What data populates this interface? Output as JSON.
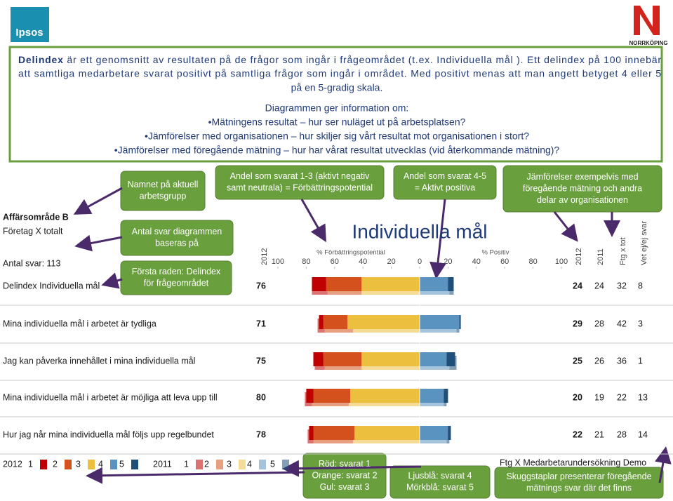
{
  "logo": "Ipsos",
  "brand": "NORRKÖPING",
  "intro": {
    "lead": "Delindex",
    "lines": [
      " är ett genomsnitt av resultaten på de frågor som ingår i frågeområdet (t.ex.  Individuella mål ). Ett delindex på 100 innebär",
      "att samtliga medarbetare svarat positivt på samtliga frågor som ingår i området. Med positivt menas att man angett betyget 4 eller 5",
      "på en 5-gradig skala."
    ],
    "heading": "Diagrammen ger information om:",
    "bullets": [
      "•Mätningens resultat – hur ser nuläget ut  på arbetsplatsen?",
      "•Jämförelser med organisationen – hur skiljer sig vårt resultat mot organisationen i stort?",
      "•Jämförelser med föregående mätning – hur har vårat resultat utvecklas (vid återkommande mätning)?"
    ]
  },
  "callouts": [
    {
      "lines": [
        "Namnet på aktuell",
        "arbetsgrupp"
      ]
    },
    {
      "lines": [
        "Antal svar diagrammen",
        "baseras på"
      ]
    },
    {
      "lines": [
        "Första raden: Delindex",
        "för frågeområdet"
      ]
    },
    {
      "lines": [
        "Andel som svarat 1-3 (aktivt negativ",
        "samt neutrala) = Förbättringspotential"
      ]
    },
    {
      "lines": [
        "Andel som svarat 4-5",
        "= Aktivt positiva"
      ]
    },
    {
      "lines": [
        "Jämförelser exempelvis med",
        "föregående mätning och  andra",
        "delar av organisationen"
      ]
    },
    {
      "lines": [
        "Röd: svarat 1",
        "Orange: svarat 2",
        "Gul: svarat 3"
      ]
    },
    {
      "lines": [
        "Ljusblå: svarat 4",
        "Mörkblå: svarat 5"
      ]
    },
    {
      "lines": [
        "Skuggstaplar presenterar föregående",
        "mätnings svar där det finns"
      ]
    }
  ],
  "labels": {
    "area": "Affärsområde B",
    "company": "Företag X totalt",
    "count": "Antal svar: 113"
  },
  "chart_data": {
    "type": "diverging-bar",
    "title": "Individuella mål",
    "left_label": "% Förbättringspotential",
    "right_label": "% Positiv",
    "xlim": [
      -100,
      100
    ],
    "xticks": [
      {
        "value": -100,
        "label": "100"
      },
      {
        "value": -80,
        "label": "80"
      },
      {
        "value": -60,
        "label": "60"
      },
      {
        "value": -40,
        "label": "40"
      },
      {
        "value": -20,
        "label": "20"
      },
      0,
      20,
      40,
      60,
      80,
      100
    ],
    "left_header": "2012",
    "right_headers": [
      "2012",
      "2011",
      "Ftg x tot",
      "Vet ej/ej svar"
    ],
    "colors": [
      "#c00000",
      "#d4501c",
      "#ecbf3f",
      "#5b93c0",
      "#1f4e79"
    ],
    "rows": [
      {
        "label": "Delindex Individuella mål",
        "score": 76,
        "shares_2012": [
          10,
          25,
          41,
          20,
          4
        ],
        "shares_2011": [
          11,
          24,
          41,
          21,
          3
        ],
        "values": [
          24,
          24,
          32,
          8
        ]
      },
      {
        "label": "Mina individuella mål i arbetet är tydliga",
        "score": 71,
        "shares_2012": [
          3,
          17,
          51,
          28,
          1
        ],
        "shares_2011": [
          5,
          20,
          47,
          26,
          2
        ],
        "values": [
          29,
          28,
          42,
          3
        ]
      },
      {
        "label": "Jag kan påverka innehållet i mina individuella mål",
        "score": 75,
        "shares_2012": [
          7,
          27,
          41,
          19,
          6
        ],
        "shares_2011": [
          7,
          26,
          41,
          21,
          5
        ],
        "values": [
          25,
          26,
          36,
          1
        ]
      },
      {
        "label": "Mina individuella mål i arbetet är möjliga att leva upp till",
        "score": 80,
        "shares_2012": [
          5,
          26,
          49,
          17,
          3
        ],
        "shares_2011": [
          5,
          26,
          50,
          17,
          2
        ],
        "values": [
          20,
          19,
          22,
          13
        ]
      },
      {
        "label": "Hur jag når mina individuella mål följs upp regelbundet",
        "score": 78,
        "shares_2012": [
          3,
          29,
          46,
          20,
          2
        ],
        "shares_2011": [
          4,
          28,
          47,
          19,
          2
        ],
        "values": [
          22,
          21,
          28,
          14
        ]
      }
    ]
  },
  "legend": {
    "items": [
      {
        "label": "2012",
        "keys": [
          "1",
          "2",
          "3",
          "4",
          "5"
        ]
      },
      {
        "label": "2011",
        "keys": [
          "1",
          "2",
          "3",
          "4",
          "5"
        ]
      }
    ]
  },
  "footer": "Ftg X Medarbetarundersökning Demo"
}
